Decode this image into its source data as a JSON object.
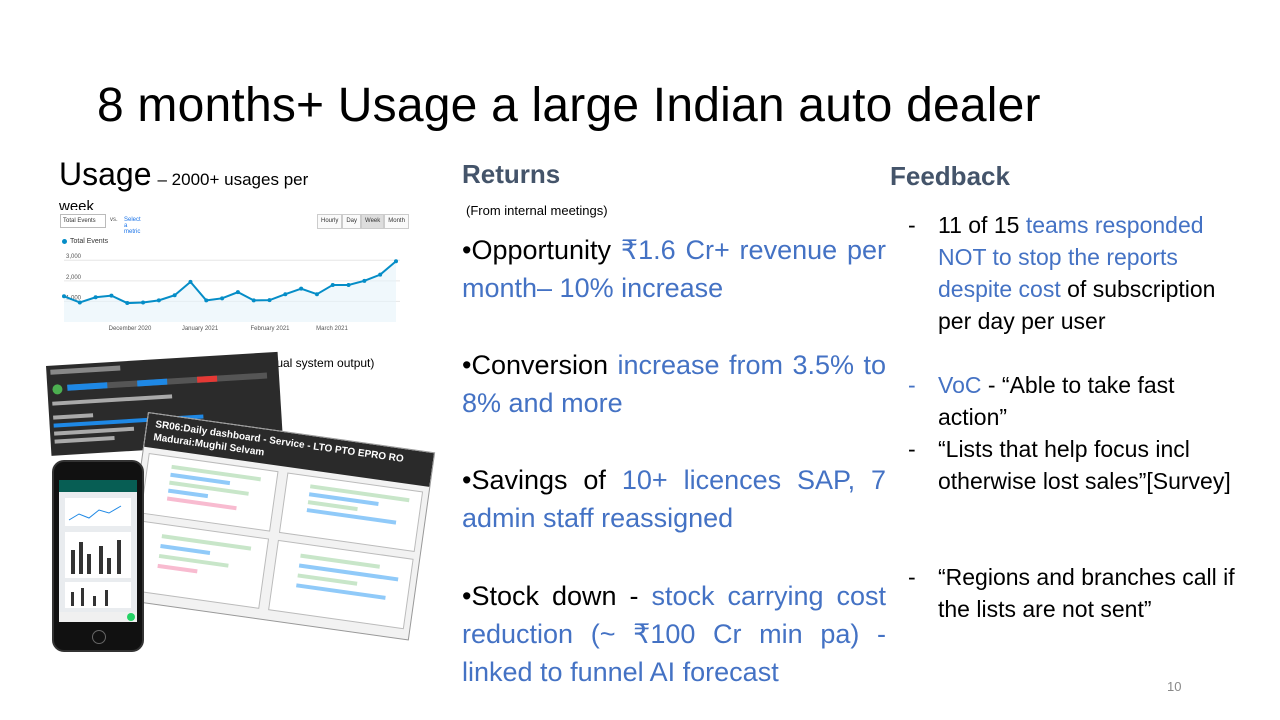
{
  "slide": {
    "title": "8 months+ Usage a large Indian auto dealer",
    "page_number": "10"
  },
  "usage": {
    "heading": "Usage",
    "subheading": "– 2000+ usages per",
    "subheading_wrap": "week",
    "caption": "(Actual system output)",
    "analytics": {
      "metric_select": "Total Events",
      "vs_label": "vs.",
      "select_metric_link": "Select a metric",
      "granularity_buttons": [
        "Hourly",
        "Day",
        "Week",
        "Month"
      ],
      "active_granularity": "Week",
      "legend_label": "Total Events",
      "series_color": "#058dc7",
      "y_ticks": [
        "3,000",
        "2,000",
        "1,000"
      ],
      "x_ticks": [
        "December 2020",
        "January 2021",
        "February 2021",
        "March 2021"
      ],
      "values": [
        1250,
        950,
        1200,
        1280,
        920,
        950,
        1050,
        1300,
        1950,
        1050,
        1150,
        1450,
        1050,
        1060,
        1350,
        1620,
        1350,
        1800,
        1800,
        2000,
        2300,
        2950
      ]
    },
    "screenshots": {
      "dashboard_title": "SR06:Daily dashboard - Service - LTO PTO EPRO RO",
      "dashboard_subtitle": "Madurai:Mughil Selvam"
    }
  },
  "returns": {
    "heading": "Returns",
    "note": "(From internal meetings)",
    "items": [
      {
        "label": "•Opportunity ",
        "value": "₹1.6 Cr+ revenue per month– 10% increase"
      },
      {
        "label": "•Conversion ",
        "value": "increase from 3.5% to 8% and more"
      },
      {
        "label": "•Savings of ",
        "value": "10+ licences SAP, 7 admin staff reassigned"
      },
      {
        "label": "•Stock down  - ",
        "value": "stock carrying cost reduction (~ ₹100 Cr min pa) -linked to funnel AI forecast"
      }
    ]
  },
  "feedback": {
    "heading": "Feedback",
    "items": [
      {
        "dash": "-",
        "prefix": "11 of 15 ",
        "highlight": "teams responded NOT to stop the reports despite cost",
        "suffix": " of subscription per day per user"
      },
      {
        "dash": "-",
        "prefix": "",
        "highlight": "VoC",
        "suffix": " - “Able to take fast action”"
      },
      {
        "dash": "-",
        "prefix": " “Lists that help focus incl otherwise lost sales”[Survey]",
        "highlight": "",
        "suffix": ""
      },
      {
        "dash": "-",
        "prefix": "“Regions and branches call if the lists are not sent”",
        "highlight": "",
        "suffix": ""
      }
    ]
  },
  "colors": {
    "accent_blue": "#4472c4",
    "heading_slate": "#44546a"
  }
}
